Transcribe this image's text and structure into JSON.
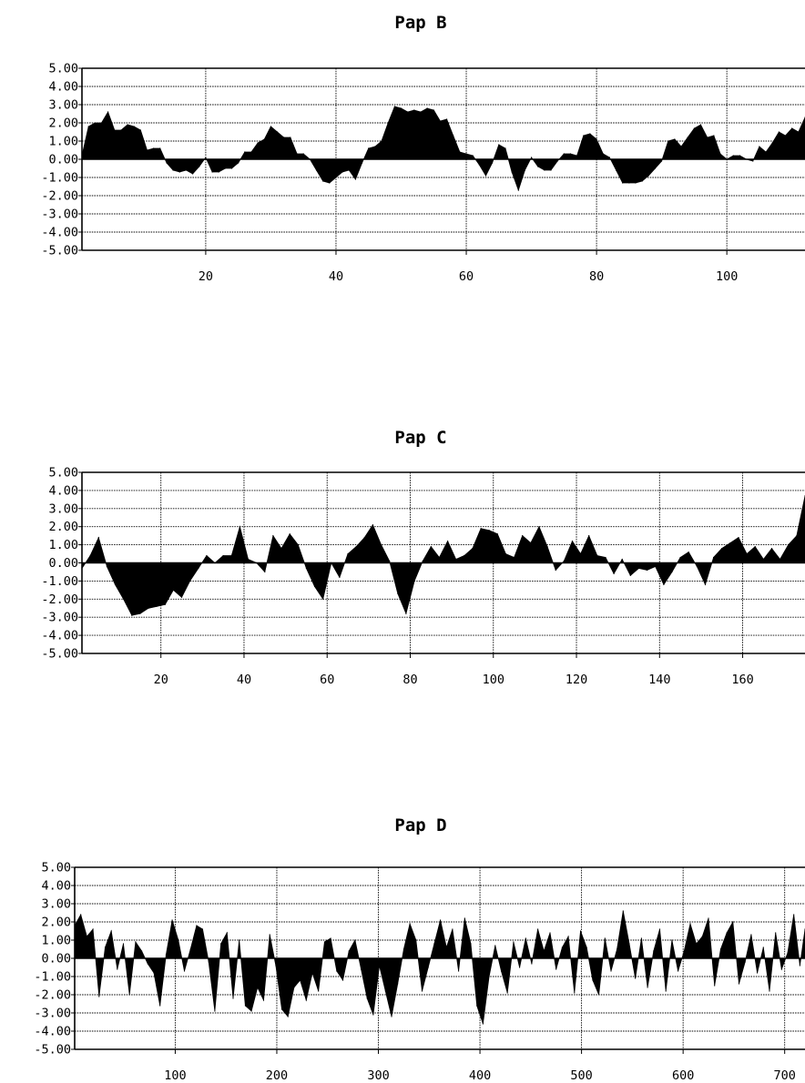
{
  "chart_data": [
    {
      "type": "area",
      "title": "Pap B",
      "xlabel": "",
      "ylabel": "",
      "ylim": [
        -5,
        5
      ],
      "xlim": [
        1,
        112
      ],
      "yticks": [
        "5.00",
        "4.00",
        "3.00",
        "2.00",
        "1.00",
        "0.00",
        "-1.00",
        "-2.00",
        "-3.00",
        "-4.00",
        "-5.00"
      ],
      "xticks": [
        20,
        40,
        60,
        80,
        100
      ],
      "grid": true,
      "x": [
        1,
        2,
        3,
        4,
        5,
        6,
        7,
        8,
        9,
        10,
        11,
        12,
        13,
        14,
        15,
        16,
        17,
        18,
        19,
        20,
        21,
        22,
        23,
        24,
        25,
        26,
        27,
        28,
        29,
        30,
        31,
        32,
        33,
        34,
        35,
        36,
        37,
        38,
        39,
        40,
        41,
        42,
        43,
        44,
        45,
        46,
        47,
        48,
        49,
        50,
        51,
        52,
        53,
        54,
        55,
        56,
        57,
        58,
        59,
        60,
        61,
        62,
        63,
        64,
        65,
        66,
        67,
        68,
        69,
        70,
        71,
        72,
        73,
        74,
        75,
        76,
        77,
        78,
        79,
        80,
        81,
        82,
        83,
        84,
        85,
        86,
        87,
        88,
        89,
        90,
        91,
        92,
        93,
        94,
        95,
        96,
        97,
        98,
        99,
        100,
        101,
        102,
        103,
        104,
        105,
        106,
        107,
        108,
        109,
        110,
        111,
        112
      ],
      "values": [
        0.2,
        1.8,
        2.0,
        2.0,
        2.6,
        1.6,
        1.6,
        1.9,
        1.8,
        1.6,
        0.5,
        0.6,
        0.6,
        -0.2,
        -0.6,
        -0.7,
        -0.6,
        -0.8,
        -0.4,
        0.1,
        -0.7,
        -0.7,
        -0.5,
        -0.5,
        -0.2,
        0.4,
        0.4,
        0.9,
        1.1,
        1.8,
        1.5,
        1.2,
        1.2,
        0.3,
        0.3,
        0.0,
        -0.6,
        -1.2,
        -1.3,
        -1.0,
        -0.7,
        -0.6,
        -1.1,
        -0.2,
        0.6,
        0.7,
        1.0,
        2.0,
        2.9,
        2.8,
        2.6,
        2.7,
        2.6,
        2.8,
        2.7,
        2.1,
        2.2,
        1.3,
        0.4,
        0.3,
        0.2,
        -0.3,
        -0.9,
        -0.2,
        0.8,
        0.6,
        -0.7,
        -1.7,
        -0.6,
        0.1,
        -0.4,
        -0.6,
        -0.6,
        -0.1,
        0.3,
        0.3,
        0.2,
        1.3,
        1.4,
        1.1,
        0.3,
        0.1,
        -0.6,
        -1.3,
        -1.3,
        -1.3,
        -1.2,
        -0.9,
        -0.5,
        -0.1,
        1.0,
        1.1,
        0.7,
        1.2,
        1.7,
        1.9,
        1.2,
        1.3,
        0.3,
        0.0,
        0.2,
        0.2,
        0.0,
        -0.1,
        0.7,
        0.4,
        0.9,
        1.5,
        1.3,
        1.7,
        1.5,
        2.3
      ]
    },
    {
      "type": "area",
      "title": "Pap C",
      "xlabel": "",
      "ylabel": "",
      "ylim": [
        -5,
        5
      ],
      "xlim": [
        1,
        175
      ],
      "yticks": [
        "5.00",
        "4.00",
        "3.00",
        "2.00",
        "1.00",
        "0.00",
        "-1.00",
        "-2.00",
        "-3.00",
        "-4.00",
        "-5.00"
      ],
      "xticks": [
        20,
        40,
        60,
        80,
        100,
        120,
        140,
        160
      ],
      "grid": true,
      "x": [
        1,
        3,
        5,
        7,
        9,
        11,
        13,
        15,
        17,
        19,
        21,
        23,
        25,
        27,
        29,
        31,
        33,
        35,
        37,
        39,
        41,
        43,
        45,
        47,
        49,
        51,
        53,
        55,
        57,
        59,
        61,
        63,
        65,
        67,
        69,
        71,
        73,
        75,
        77,
        79,
        81,
        83,
        85,
        87,
        89,
        91,
        93,
        95,
        97,
        99,
        101,
        103,
        105,
        107,
        109,
        111,
        113,
        115,
        117,
        119,
        121,
        123,
        125,
        127,
        129,
        131,
        133,
        135,
        137,
        139,
        141,
        143,
        145,
        147,
        149,
        151,
        153,
        155,
        157,
        159,
        161,
        163,
        165,
        167,
        169,
        171,
        173,
        175
      ],
      "values": [
        -0.3,
        0.4,
        1.4,
        -0.2,
        -1.2,
        -2.0,
        -2.9,
        -2.8,
        -2.5,
        -2.4,
        -2.3,
        -1.5,
        -1.9,
        -1.0,
        -0.3,
        0.4,
        0.0,
        0.4,
        0.4,
        2.0,
        0.2,
        0.0,
        -0.5,
        1.5,
        0.8,
        1.6,
        1.0,
        -0.3,
        -1.3,
        -2.0,
        0.0,
        -0.8,
        0.5,
        0.9,
        1.4,
        2.1,
        1.0,
        0.1,
        -1.7,
        -2.8,
        -1.0,
        0.1,
        0.9,
        0.3,
        1.2,
        0.2,
        0.4,
        0.8,
        1.9,
        1.8,
        1.6,
        0.5,
        0.3,
        1.5,
        1.1,
        2.0,
        0.9,
        -0.4,
        0.1,
        1.2,
        0.5,
        1.5,
        0.4,
        0.3,
        -0.6,
        0.2,
        -0.7,
        -0.3,
        -0.4,
        -0.2,
        -1.2,
        -0.5,
        0.3,
        0.6,
        -0.2,
        -1.2,
        0.3,
        0.8,
        1.1,
        1.4,
        0.5,
        0.9,
        0.2,
        0.8,
        0.2,
        1.0,
        1.5,
        3.7
      ]
    },
    {
      "type": "area",
      "title": "Pap D",
      "xlabel": "",
      "ylabel": "",
      "ylim": [
        -5,
        5
      ],
      "xlim": [
        1,
        720
      ],
      "yticks": [
        "5.00",
        "4.00",
        "3.00",
        "2.00",
        "1.00",
        "0.00",
        "-1.00",
        "-2.00",
        "-3.00",
        "-4.00",
        "-5.00"
      ],
      "xticks": [
        100,
        200,
        300,
        400,
        500,
        600,
        700
      ],
      "grid": true,
      "x": [
        1,
        7,
        13,
        19,
        25,
        31,
        37,
        43,
        49,
        55,
        61,
        67,
        73,
        79,
        85,
        91,
        97,
        103,
        109,
        115,
        121,
        127,
        133,
        139,
        145,
        151,
        157,
        163,
        169,
        175,
        181,
        187,
        193,
        199,
        205,
        211,
        217,
        223,
        229,
        235,
        241,
        247,
        253,
        259,
        265,
        271,
        277,
        283,
        289,
        295,
        301,
        307,
        313,
        319,
        325,
        331,
        337,
        343,
        349,
        355,
        361,
        367,
        373,
        379,
        385,
        391,
        397,
        403,
        409,
        415,
        421,
        427,
        433,
        439,
        445,
        451,
        457,
        463,
        469,
        475,
        481,
        487,
        493,
        499,
        505,
        511,
        517,
        523,
        529,
        535,
        541,
        547,
        553,
        559,
        565,
        571,
        577,
        583,
        589,
        595,
        601,
        607,
        613,
        619,
        625,
        631,
        637,
        643,
        649,
        655,
        661,
        667,
        673,
        679,
        685,
        691,
        697,
        703,
        709,
        715,
        720
      ],
      "values": [
        1.8,
        2.4,
        1.2,
        1.6,
        -2.1,
        0.6,
        1.5,
        -0.6,
        0.8,
        -2.0,
        0.9,
        0.4,
        -0.3,
        -0.8,
        -2.6,
        0.2,
        2.1,
        1.0,
        -0.7,
        0.5,
        1.8,
        1.6,
        -0.2,
        -2.9,
        0.8,
        1.4,
        -2.2,
        1.0,
        -2.6,
        -2.9,
        -1.6,
        -2.3,
        1.3,
        -0.4,
        -2.8,
        -3.2,
        -1.6,
        -1.2,
        -2.3,
        -0.8,
        -1.8,
        0.9,
        1.1,
        -0.7,
        -1.2,
        0.4,
        1.0,
        -0.6,
        -2.2,
        -3.1,
        -0.4,
        -1.8,
        -3.2,
        -1.4,
        0.5,
        1.9,
        1.0,
        -1.8,
        -0.5,
        0.8,
        2.1,
        0.6,
        1.6,
        -0.7,
        2.2,
        0.8,
        -2.6,
        -3.6,
        -1.0,
        0.7,
        -0.7,
        -1.9,
        0.9,
        -0.5,
        1.1,
        -0.3,
        1.6,
        0.4,
        1.4,
        -0.6,
        0.6,
        1.2,
        -1.9,
        1.5,
        0.6,
        -1.2,
        -2.0,
        1.1,
        -0.7,
        0.5,
        2.6,
        0.8,
        -1.1,
        1.1,
        -1.6,
        0.4,
        1.6,
        -1.8,
        1.0,
        -0.7,
        0.4,
        1.9,
        0.8,
        1.2,
        2.2,
        -1.5,
        0.5,
        1.4,
        2.0,
        -1.4,
        -0.2,
        1.3,
        -0.8,
        0.6,
        -1.8,
        1.4,
        -0.6,
        0.3,
        2.4,
        -0.4,
        1.6
      ]
    }
  ]
}
